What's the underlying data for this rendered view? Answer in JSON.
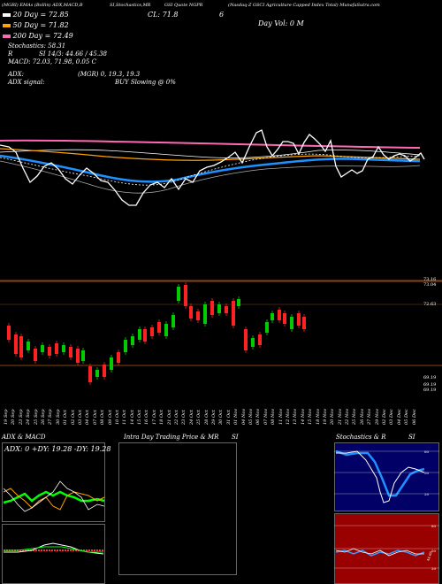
{
  "header": {
    "line1_left": "(MGRI) EMAs (Bollin) ADX,MACD,B",
    "line1_mid": "SI,Stochastics,MR",
    "line1_right": "GSI Quote NGPR",
    "line1_far": "(Nasdaq-Z GSCI Agriculture Capped Index Total) MunafaSutra.com",
    "cl_label": "CL: 71.8",
    "cl_value": "6",
    "vol_label": "Day Vol: 0  M"
  },
  "ema": [
    {
      "label": "20  Day = 72.85",
      "color": "#ffffff"
    },
    {
      "label": "50  Day = 71.82",
      "color": "#ffa500"
    },
    {
      "label": "200  Day = 72.49",
      "color": "#ff69b4"
    }
  ],
  "indicators": {
    "stoch": "Stochastics: 58.31",
    "si": "SI 14/3: 44.66  /  45.38",
    "si_prefix": "R",
    "macd": "MACD: 72.03, 71.98, 0.05  C",
    "adx": "ADX:",
    "adx_val": "(MGR) 0,  19.3,  19.3",
    "adx_signal": "ADX  signal:",
    "buy_signal": "BUY Slowing @ 0%"
  },
  "candles": {
    "price_labels": [
      "73.16",
      "73.04",
      "72.63",
      "69.19",
      "69.19",
      "69.19"
    ],
    "dates": [
      "19 Sep",
      "20 Sep",
      "23 Sep",
      "24 Sep",
      "25 Sep",
      "26 Sep",
      "27 Sep",
      "30 Sep",
      "01 Oct",
      "02 Oct",
      "03 Oct",
      "04 Oct",
      "07 Oct",
      "08 Oct",
      "09 Oct",
      "10 Oct",
      "11 Oct",
      "14 Oct",
      "15 Oct",
      "16 Oct",
      "17 Oct",
      "18 Oct",
      "21 Oct",
      "22 Oct",
      "23 Oct",
      "24 Oct",
      "25 Oct",
      "28 Oct",
      "29 Oct",
      "30 Oct",
      "31 Oct",
      "01 Nov",
      "04 Nov",
      "05 Nov",
      "06 Nov",
      "07 Nov",
      "08 Nov",
      "11 Nov",
      "12 Nov",
      "13 Nov",
      "14 Nov",
      "15 Nov",
      "18 Nov",
      "19 Nov",
      "20 Nov",
      "21 Nov",
      "22 Nov",
      "25 Nov",
      "26 Nov",
      "27 Nov",
      "29 Nov",
      "02 Dec",
      "03 Dec",
      "04 Dec",
      "05 Dec",
      "06 Dec"
    ]
  },
  "panels": {
    "adx_title": "ADX  & MACD",
    "adx_readout": "ADX: 0  +DY: 19.28  -DY: 19.28",
    "intra_title": "Intra  Day Trading Price  & MR",
    "intra_si": "SI",
    "stoch_title": "Stochastics & R",
    "stoch_si": "SI",
    "stoch_ticks": [
      "80",
      "50",
      "20"
    ],
    "si_ticks": [
      "80",
      "50",
      "20"
    ],
    "si_value": "44.66"
  },
  "colors": {
    "ema20": "#ffffff",
    "ema50": "#ffa500",
    "ema200": "#ff69b4",
    "bb_mid": "#1e90ff",
    "up": "#00cc00",
    "down": "#ff2222",
    "stoch_bg": "#000066",
    "si_bg": "#990000"
  }
}
